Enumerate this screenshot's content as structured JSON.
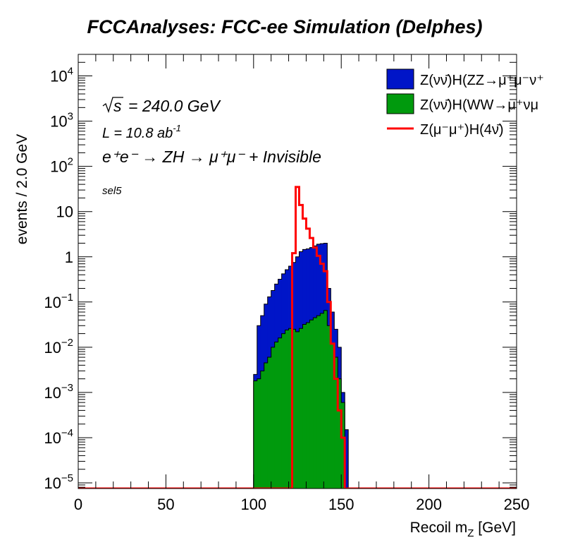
{
  "chart_data": {
    "type": "area",
    "title": "FCCAnalyses: FCC-ee Simulation (Delphes)",
    "xlabel": "Recoil m",
    "xlabel_sub": "Z",
    "xlabel_unit": " [GeV]",
    "ylabel": "events / 2.0 GeV",
    "xlim": [
      0,
      250
    ],
    "ylim": [
      7.5e-06,
      30000
    ],
    "log_y": true,
    "x_ticks": [
      0,
      50,
      100,
      150,
      200,
      250
    ],
    "x_tick_labels": [
      "0",
      "50",
      "100",
      "150",
      "200",
      "250"
    ],
    "y_ticks": [
      1e-05,
      0.0001,
      0.001,
      0.01,
      0.1,
      1,
      10,
      100,
      1000,
      10000
    ],
    "y_tick_labels": [
      {
        "base": "10",
        "exp": "−5"
      },
      {
        "base": "10",
        "exp": "−4"
      },
      {
        "base": "10",
        "exp": "−3"
      },
      {
        "base": "10",
        "exp": "−2"
      },
      {
        "base": "10",
        "exp": "−1"
      },
      {
        "base": "1",
        "exp": ""
      },
      {
        "base": "10",
        "exp": ""
      },
      {
        "base": "10",
        "exp": "2"
      },
      {
        "base": "10",
        "exp": "3"
      },
      {
        "base": "10",
        "exp": "4"
      }
    ],
    "bin_width": 2,
    "annotations": {
      "sqrt_s": "= 240.0 GeV",
      "lumi": "L = 10.8 ab",
      "lumi_exp": "-1",
      "process": "e⁺e⁻ → ZH → μ⁺μ⁻ + Invisible",
      "selection": "sel5"
    },
    "legend_position": "top-right",
    "series": [
      {
        "name": "Z(νν̄)H(ZZ→μ⁺μ⁻ν⁺",
        "style": "filled",
        "color": "#0015c8",
        "edges": [
          100,
          102,
          104,
          106,
          108,
          110,
          112,
          114,
          116,
          118,
          120,
          122,
          124,
          126,
          128,
          130,
          132,
          134,
          136,
          138,
          140,
          142,
          144,
          146,
          148,
          150,
          152,
          154
        ],
        "values": [
          0.0025,
          0.03,
          0.05,
          0.09,
          0.13,
          0.18,
          0.25,
          0.32,
          0.42,
          0.52,
          0.62,
          0.75,
          1.0,
          1.3,
          1.45,
          1.5,
          1.6,
          1.75,
          1.9,
          1.95,
          2.0,
          0.2,
          0.06,
          0.025,
          0.01,
          0.001,
          0.00015
        ]
      },
      {
        "name": "Z(νν̄)H(WW→μ⁺νμ",
        "style": "filled",
        "color": "#009a0d",
        "edges": [
          100,
          102,
          104,
          106,
          108,
          110,
          112,
          114,
          116,
          118,
          120,
          122,
          124,
          126,
          128,
          130,
          132,
          134,
          136,
          138,
          140,
          142,
          144,
          146,
          148,
          150,
          152
        ],
        "values": [
          0.0018,
          0.002,
          0.003,
          0.0045,
          0.006,
          0.01,
          0.013,
          0.016,
          0.02,
          0.024,
          0.026,
          0.025,
          0.022,
          0.026,
          0.032,
          0.035,
          0.04,
          0.045,
          0.05,
          0.056,
          0.065,
          0.03,
          0.012,
          0.006,
          0.002,
          0.0006
        ]
      },
      {
        "name": "Z(μ⁻μ⁺)H(4ν̄)",
        "style": "step",
        "color": "#ff0000",
        "edges": [
          0,
          122,
          124,
          126,
          128,
          130,
          132,
          134,
          136,
          138,
          140,
          142,
          144,
          146,
          148,
          150,
          152,
          154,
          250
        ],
        "values": [
          7.5e-06,
          1.2,
          35,
          14,
          7,
          4.2,
          2.6,
          1.6,
          1.05,
          0.7,
          0.48,
          0.1,
          0.012,
          0.002,
          0.0004,
          0.0001,
          7.5e-06,
          7.5e-06
        ]
      }
    ]
  }
}
